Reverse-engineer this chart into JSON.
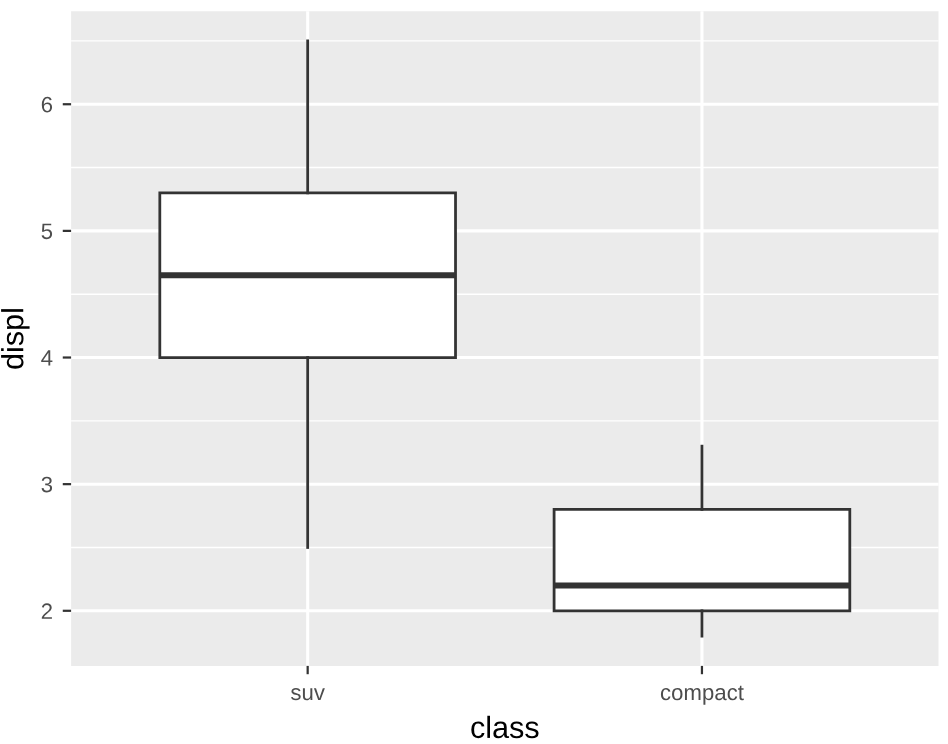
{
  "chart_data": {
    "type": "box",
    "xlabel": "class",
    "ylabel": "displ",
    "categories": [
      "suv",
      "compact"
    ],
    "boxes": [
      {
        "low": 2.5,
        "q1": 4.0,
        "median": 4.65,
        "q3": 5.3,
        "high": 6.5
      },
      {
        "low": 1.8,
        "q1": 2.0,
        "median": 2.2,
        "q3": 2.8,
        "high": 3.3
      }
    ],
    "ylim": [
      1.565,
      6.735
    ],
    "yticks": [
      2,
      {
        "value": 2.5,
        "label": null
      },
      3,
      {
        "value": 3.5,
        "label": null
      },
      4,
      {
        "value": 4.5,
        "label": null
      },
      5,
      {
        "value": 5.5,
        "label": null
      },
      6,
      {
        "value": 6.5,
        "label": null
      }
    ],
    "grid": true,
    "color": "#ffffff"
  }
}
